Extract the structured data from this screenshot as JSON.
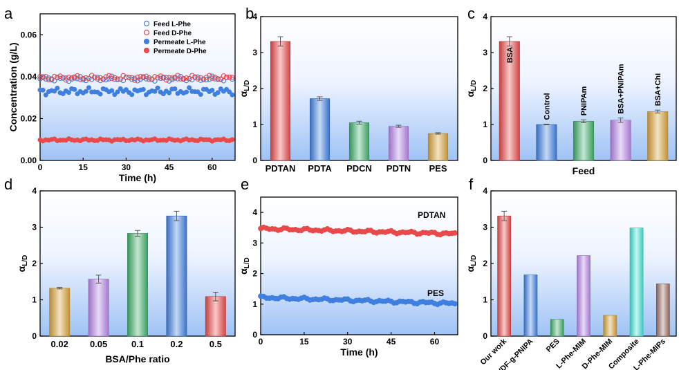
{
  "panels": {
    "a": "a",
    "b": "b",
    "c": "c",
    "d": "d",
    "e": "e",
    "f": "f"
  },
  "colors": {
    "red": "#e84a4a",
    "blue": "#3f7fe0",
    "green": "#3fae6a",
    "purple": "#b585e6",
    "gold": "#d8a23a",
    "cyan": "#3fe3d2",
    "brown": "#9a6c64",
    "bg_top": "#ffffff",
    "bg_bottom": "#9fc3f5",
    "our_work_label": "#e03030"
  },
  "chart_data": [
    {
      "id": "a",
      "type": "scatter",
      "xlabel": "Time (h)",
      "ylabel": "Concentration (g/L)",
      "xlim": [
        0,
        68
      ],
      "ylim": [
        0,
        0.07
      ],
      "xticks": [
        "0",
        "15",
        "30",
        "45",
        "60"
      ],
      "yticks": [
        "0.00",
        "0.02",
        "0.04",
        "0.06"
      ],
      "legend_position": "top-right",
      "series": [
        {
          "name": "Feed L-Phe",
          "marker": "open-circle",
          "color": "#3f7fe0",
          "mean": 0.039,
          "amp": 0.0012
        },
        {
          "name": "Feed D-Phe",
          "marker": "open-circle",
          "color": "#e84a4a",
          "mean": 0.0395,
          "amp": 0.0012
        },
        {
          "name": "Permeate L-Phe",
          "marker": "filled-circle",
          "color": "#3f7fe0",
          "mean": 0.033,
          "amp": 0.0018
        },
        {
          "name": "Permeate D-Phe",
          "marker": "filled-circle",
          "color": "#e84a4a",
          "mean": 0.0098,
          "amp": 0.0006
        }
      ],
      "x_start": 0,
      "x_end": 67,
      "x_step": 1
    },
    {
      "id": "b",
      "type": "bar",
      "ylabel_main": "α",
      "ylabel_sub": "L/D",
      "ylim": [
        0,
        4
      ],
      "yticks": [
        "0",
        "1",
        "2",
        "3",
        "4"
      ],
      "categories": [
        "PDTAN",
        "PDTA",
        "PDCN",
        "PDTN",
        "PES"
      ],
      "values": [
        3.31,
        1.72,
        1.05,
        0.95,
        0.75
      ],
      "errors": [
        0.13,
        0.05,
        0.04,
        0.03,
        0.02
      ],
      "colors": [
        "#e84a4a",
        "#3f7fe0",
        "#3fae6a",
        "#b585e6",
        "#d8a23a"
      ]
    },
    {
      "id": "c",
      "type": "bar",
      "xlabel": "Feed",
      "ylabel_main": "α",
      "ylabel_sub": "L/D",
      "ylim": [
        0,
        4
      ],
      "yticks": [
        "0",
        "1",
        "2",
        "3",
        "4"
      ],
      "categories": [
        "BSA",
        "Control",
        "PNIPAm",
        "BSA+PNIPAm",
        "BSA+Chi"
      ],
      "values": [
        3.31,
        1.0,
        1.09,
        1.12,
        1.36
      ],
      "errors": [
        0.13,
        0.01,
        0.04,
        0.06,
        0.04
      ],
      "colors": [
        "#e84a4a",
        "#3f7fe0",
        "#3fae6a",
        "#b585e6",
        "#d8a23a"
      ]
    },
    {
      "id": "d",
      "type": "bar",
      "xlabel": "BSA/Phe ratio",
      "ylabel_main": "α",
      "ylabel_sub": "L/D",
      "ylim": [
        0,
        4
      ],
      "yticks": [
        "0",
        "1",
        "2",
        "3",
        "4"
      ],
      "categories": [
        "0.02",
        "0.05",
        "0.1",
        "0.2",
        "0.5"
      ],
      "values": [
        1.32,
        1.57,
        2.83,
        3.31,
        1.09
      ],
      "errors": [
        0.02,
        0.11,
        0.08,
        0.13,
        0.12
      ],
      "colors": [
        "#d8a23a",
        "#b585e6",
        "#3fae6a",
        "#3f7fe0",
        "#e84a4a"
      ]
    },
    {
      "id": "e",
      "type": "scatter",
      "xlabel": "Time (h)",
      "ylabel_main": "α",
      "ylabel_sub": "L/D",
      "xlim": [
        0,
        68
      ],
      "ylim": [
        0,
        4.5
      ],
      "xticks": [
        "0",
        "15",
        "30",
        "45",
        "60"
      ],
      "yticks": [
        "0",
        "1",
        "2",
        "3",
        "4"
      ],
      "series": [
        {
          "name": "PDTAN",
          "color": "#e84a4a",
          "start": 3.47,
          "end": 3.3,
          "amp": 0.05
        },
        {
          "name": "PES",
          "color": "#3f7fe0",
          "start": 1.22,
          "end": 1.02,
          "amp": 0.05
        }
      ],
      "x_start": 0,
      "x_end": 67,
      "x_step": 1
    },
    {
      "id": "f",
      "type": "bar",
      "ylabel_main": "α",
      "ylabel_sub": "L/D",
      "ylim": [
        0,
        4
      ],
      "yticks": [
        "0",
        "1",
        "2",
        "3",
        "4"
      ],
      "categories": [
        "Our work",
        "PVDF-g-PNIPA",
        "PES",
        "L-Phe-MIM",
        "D-Phe-MIM",
        "Composite",
        "L-Phe-MIPs"
      ],
      "values": [
        3.31,
        1.69,
        0.46,
        2.22,
        0.57,
        2.98,
        1.44
      ],
      "errors": [
        0.13,
        0,
        0,
        0,
        0,
        0,
        0
      ],
      "colors": [
        "#e84a4a",
        "#3f7fe0",
        "#3fae6a",
        "#b585e6",
        "#d8a23a",
        "#3fe3d2",
        "#9a6c64"
      ]
    }
  ]
}
